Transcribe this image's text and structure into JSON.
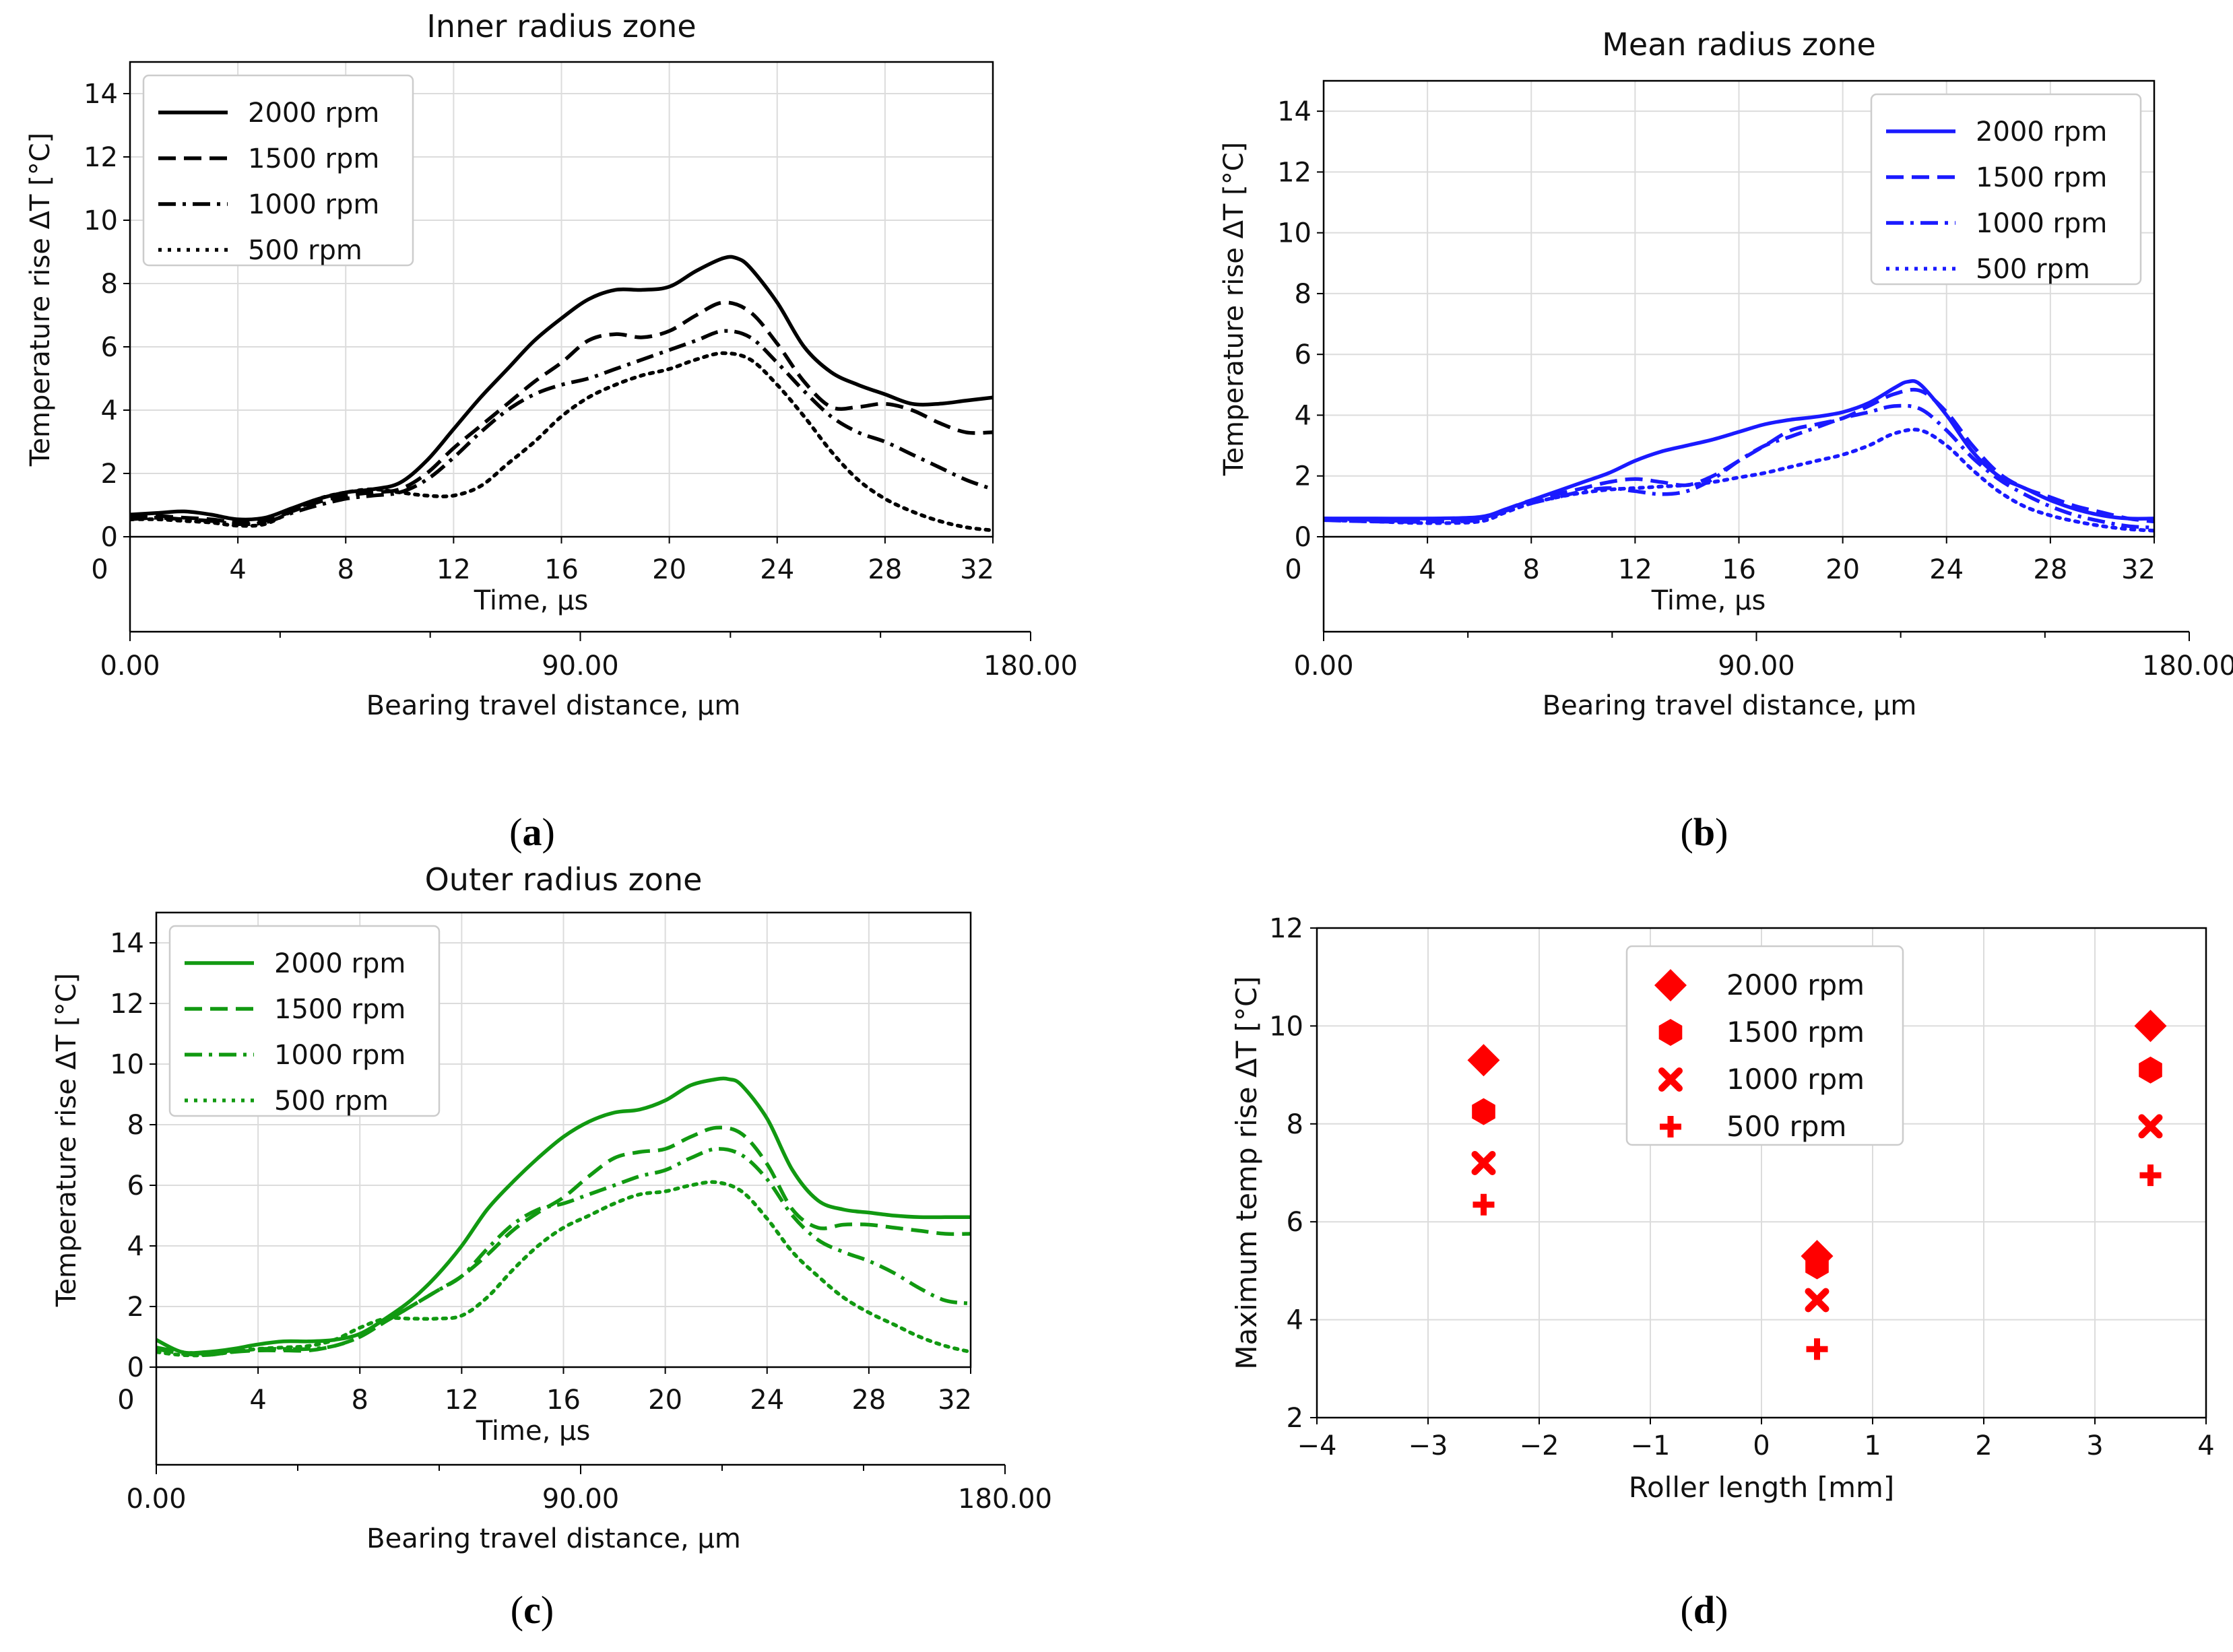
{
  "figure": {
    "panel_labels": [
      {
        "open": "(",
        "letter": "a",
        "close": ")"
      },
      {
        "open": "(",
        "letter": "b",
        "close": ")"
      },
      {
        "open": "(",
        "letter": "c",
        "close": ")"
      },
      {
        "open": "(",
        "letter": "d",
        "close": ")"
      }
    ]
  },
  "chart_data": [
    {
      "type": "line",
      "title": "Inner radius zone",
      "xlabel": "Time, µs",
      "ylabel": "Temperature rise ΔT [°C]",
      "xlabel_secondary": "Bearing travel distance, µm",
      "xlim": [
        0,
        32
      ],
      "ylim": [
        0,
        15
      ],
      "x_ticks": [
        0,
        4,
        8,
        12,
        16,
        20,
        24,
        28,
        32
      ],
      "y_ticks": [
        0,
        2,
        4,
        6,
        8,
        10,
        12,
        14
      ],
      "secondary_ticks": [
        "0.00",
        "90.00",
        "180.00"
      ],
      "secondary_range": [
        0,
        180
      ],
      "grid": true,
      "legend": "top-left",
      "color": "#000000",
      "series": [
        {
          "name": "2000 rpm",
          "style": "solid",
          "x": [
            0,
            1,
            2,
            3,
            4,
            5,
            6,
            7,
            8,
            9,
            10,
            11,
            12,
            13,
            14,
            15,
            16,
            17,
            18,
            19,
            20,
            21,
            22,
            22.5,
            23,
            24,
            25,
            26,
            27,
            28,
            29,
            30,
            31,
            32
          ],
          "y": [
            0.7,
            0.75,
            0.8,
            0.7,
            0.55,
            0.6,
            0.9,
            1.2,
            1.4,
            1.5,
            1.7,
            2.4,
            3.4,
            4.4,
            5.3,
            6.2,
            6.9,
            7.5,
            7.8,
            7.8,
            7.9,
            8.4,
            8.8,
            8.8,
            8.5,
            7.4,
            6.0,
            5.2,
            4.8,
            4.5,
            4.2,
            4.2,
            4.3,
            4.4
          ]
        },
        {
          "name": "1500 rpm",
          "style": "dashed",
          "x": [
            0,
            1,
            2,
            3,
            4,
            5,
            6,
            7,
            8,
            9,
            10,
            11,
            12,
            13,
            14,
            15,
            16,
            17,
            18,
            19,
            20,
            21,
            22,
            23,
            24,
            25,
            26,
            27,
            28,
            29,
            30,
            31,
            32
          ],
          "y": [
            0.6,
            0.65,
            0.6,
            0.55,
            0.45,
            0.5,
            0.8,
            1.1,
            1.3,
            1.4,
            1.5,
            2.0,
            2.8,
            3.5,
            4.2,
            4.9,
            5.5,
            6.2,
            6.4,
            6.3,
            6.5,
            7.0,
            7.4,
            7.1,
            6.1,
            4.9,
            4.1,
            4.1,
            4.2,
            4.0,
            3.6,
            3.3,
            3.3
          ]
        },
        {
          "name": "1000 rpm",
          "style": "dashdot",
          "x": [
            0,
            1,
            2,
            3,
            4,
            5,
            6,
            7,
            8,
            9,
            10,
            11,
            12,
            13,
            14,
            15,
            16,
            17,
            18,
            19,
            20,
            21,
            22,
            23,
            24,
            25,
            26,
            27,
            28,
            29,
            30,
            31,
            32
          ],
          "y": [
            0.55,
            0.6,
            0.55,
            0.5,
            0.4,
            0.45,
            0.75,
            1.0,
            1.2,
            1.3,
            1.4,
            1.8,
            2.5,
            3.3,
            4.0,
            4.5,
            4.8,
            5.0,
            5.3,
            5.6,
            5.9,
            6.2,
            6.5,
            6.3,
            5.5,
            4.6,
            3.8,
            3.3,
            3.0,
            2.6,
            2.2,
            1.8,
            1.5
          ]
        },
        {
          "name": "500 rpm",
          "style": "dotted",
          "x": [
            0,
            1,
            2,
            3,
            4,
            5,
            6,
            7,
            8,
            9,
            10,
            11,
            12,
            13,
            14,
            15,
            16,
            17,
            18,
            19,
            20,
            21,
            22,
            23,
            24,
            25,
            26,
            27,
            28,
            29,
            30,
            31,
            32
          ],
          "y": [
            0.55,
            0.55,
            0.5,
            0.45,
            0.35,
            0.4,
            0.8,
            1.2,
            1.4,
            1.5,
            1.4,
            1.3,
            1.3,
            1.6,
            2.3,
            3.0,
            3.8,
            4.4,
            4.8,
            5.1,
            5.3,
            5.6,
            5.8,
            5.6,
            4.8,
            3.8,
            2.7,
            1.8,
            1.2,
            0.8,
            0.5,
            0.3,
            0.2
          ]
        }
      ]
    },
    {
      "type": "line",
      "title": "Mean radius zone",
      "xlabel": "Time, µs",
      "ylabel": "Temperature rise ΔT [°C]",
      "xlabel_secondary": "Bearing travel distance, µm",
      "xlim": [
        0,
        32
      ],
      "ylim": [
        0,
        15
      ],
      "x_ticks": [
        0,
        4,
        8,
        12,
        16,
        20,
        24,
        28,
        32
      ],
      "y_ticks": [
        0,
        2,
        4,
        6,
        8,
        10,
        12,
        14
      ],
      "secondary_ticks": [
        "0.00",
        "90.00",
        "180.00"
      ],
      "secondary_range": [
        0,
        180
      ],
      "grid": true,
      "legend": "top-right",
      "color": "#1a1aff",
      "series": [
        {
          "name": "2000 rpm",
          "style": "solid",
          "x": [
            0,
            2,
            4,
            6,
            7,
            8,
            9,
            10,
            11,
            12,
            13,
            14,
            15,
            16,
            17,
            18,
            19,
            20,
            21,
            22,
            22.5,
            23,
            24,
            25,
            26,
            27,
            28,
            29,
            30,
            31,
            32
          ],
          "y": [
            0.6,
            0.6,
            0.6,
            0.65,
            0.9,
            1.2,
            1.5,
            1.8,
            2.1,
            2.5,
            2.8,
            3.0,
            3.2,
            3.45,
            3.7,
            3.85,
            3.95,
            4.1,
            4.4,
            4.9,
            5.1,
            5.0,
            4.0,
            2.8,
            2.0,
            1.6,
            1.2,
            0.9,
            0.7,
            0.6,
            0.6
          ]
        },
        {
          "name": "1500 rpm",
          "style": "dashed",
          "x": [
            0,
            2,
            4,
            6,
            7,
            8,
            9,
            10,
            11,
            12,
            13,
            14,
            15,
            16,
            17,
            18,
            19,
            20,
            21,
            22,
            23,
            24,
            25,
            26,
            27,
            28,
            29,
            30,
            31,
            32
          ],
          "y": [
            0.55,
            0.5,
            0.5,
            0.6,
            0.9,
            1.2,
            1.4,
            1.6,
            1.8,
            1.9,
            1.8,
            1.7,
            2.0,
            2.5,
            3.0,
            3.5,
            3.7,
            3.9,
            4.3,
            4.7,
            4.8,
            4.1,
            3.0,
            2.1,
            1.6,
            1.3,
            1.0,
            0.8,
            0.6,
            0.5
          ]
        },
        {
          "name": "1000 rpm",
          "style": "dashdot",
          "x": [
            0,
            2,
            4,
            6,
            7,
            8,
            9,
            10,
            11,
            12,
            13,
            14,
            15,
            16,
            17,
            18,
            19,
            20,
            21,
            22,
            23,
            24,
            25,
            26,
            27,
            28,
            29,
            30,
            31,
            32
          ],
          "y": [
            0.6,
            0.55,
            0.5,
            0.55,
            0.85,
            1.1,
            1.3,
            1.5,
            1.6,
            1.5,
            1.4,
            1.5,
            1.9,
            2.5,
            3.0,
            3.3,
            3.6,
            3.9,
            4.1,
            4.3,
            4.2,
            3.5,
            2.6,
            1.9,
            1.4,
            1.0,
            0.7,
            0.5,
            0.35,
            0.3
          ]
        },
        {
          "name": "500 rpm",
          "style": "dotted",
          "x": [
            0,
            2,
            4,
            6,
            7,
            8,
            9,
            10,
            11,
            12,
            13,
            14,
            15,
            16,
            17,
            18,
            19,
            20,
            21,
            22,
            23,
            24,
            25,
            26,
            27,
            28,
            29,
            30,
            31,
            32
          ],
          "y": [
            0.55,
            0.5,
            0.45,
            0.5,
            0.8,
            1.1,
            1.3,
            1.45,
            1.55,
            1.6,
            1.65,
            1.7,
            1.8,
            1.95,
            2.1,
            2.3,
            2.5,
            2.7,
            3.0,
            3.4,
            3.5,
            3.0,
            2.2,
            1.5,
            1.0,
            0.7,
            0.5,
            0.35,
            0.25,
            0.2
          ]
        }
      ]
    },
    {
      "type": "line",
      "title": "Outer radius zone",
      "xlabel": "Time, µs",
      "ylabel": "Temperature rise ΔT [°C]",
      "xlabel_secondary": "Bearing travel distance, µm",
      "xlim": [
        0,
        32
      ],
      "ylim": [
        0,
        15
      ],
      "x_ticks": [
        0,
        4,
        8,
        12,
        16,
        20,
        24,
        28,
        32
      ],
      "y_ticks": [
        0,
        2,
        4,
        6,
        8,
        10,
        12,
        14
      ],
      "secondary_ticks": [
        "0.00",
        "90.00",
        "180.00"
      ],
      "secondary_range": [
        0,
        180
      ],
      "grid": true,
      "legend": "top-left",
      "color": "#119911",
      "series": [
        {
          "name": "2000 rpm",
          "style": "solid",
          "x": [
            0,
            1,
            2,
            3,
            4,
            5,
            6,
            7,
            8,
            9,
            10,
            11,
            12,
            13,
            14,
            15,
            16,
            17,
            18,
            19,
            20,
            21,
            22,
            22.5,
            23,
            24,
            25,
            26,
            27,
            28,
            29,
            30,
            31,
            32
          ],
          "y": [
            0.9,
            0.5,
            0.5,
            0.6,
            0.75,
            0.85,
            0.85,
            0.9,
            1.1,
            1.6,
            2.2,
            3.0,
            4.0,
            5.2,
            6.1,
            6.9,
            7.6,
            8.1,
            8.4,
            8.5,
            8.8,
            9.3,
            9.5,
            9.5,
            9.3,
            8.2,
            6.5,
            5.5,
            5.2,
            5.1,
            5.0,
            4.95,
            4.95,
            4.95
          ]
        },
        {
          "name": "1500 rpm",
          "style": "dashed",
          "x": [
            0,
            1,
            2,
            3,
            4,
            5,
            6,
            7,
            8,
            9,
            10,
            11,
            12,
            13,
            14,
            15,
            16,
            17,
            18,
            19,
            20,
            21,
            22,
            23,
            24,
            25,
            26,
            27,
            28,
            29,
            30,
            31,
            32
          ],
          "y": [
            0.6,
            0.45,
            0.4,
            0.5,
            0.55,
            0.55,
            0.55,
            0.7,
            1.0,
            1.5,
            2.0,
            2.5,
            3.0,
            3.7,
            4.5,
            5.1,
            5.6,
            6.3,
            6.9,
            7.1,
            7.2,
            7.6,
            7.9,
            7.7,
            6.7,
            5.2,
            4.6,
            4.7,
            4.7,
            4.6,
            4.5,
            4.4,
            4.4
          ]
        },
        {
          "name": "1000 rpm",
          "style": "dashdot",
          "x": [
            0,
            1,
            2,
            3,
            4,
            5,
            6,
            7,
            8,
            9,
            10,
            11,
            12,
            13,
            14,
            15,
            16,
            17,
            18,
            19,
            20,
            21,
            22,
            23,
            24,
            25,
            26,
            27,
            28,
            29,
            30,
            31,
            32
          ],
          "y": [
            0.65,
            0.5,
            0.45,
            0.55,
            0.6,
            0.6,
            0.6,
            0.7,
            1.0,
            1.5,
            2.0,
            2.5,
            3.0,
            3.9,
            4.7,
            5.2,
            5.4,
            5.7,
            6.0,
            6.3,
            6.5,
            6.9,
            7.2,
            7.0,
            6.2,
            5.0,
            4.2,
            3.8,
            3.5,
            3.1,
            2.6,
            2.2,
            2.1
          ]
        },
        {
          "name": "500 rpm",
          "style": "dotted",
          "x": [
            0,
            1,
            2,
            3,
            4,
            5,
            6,
            7,
            8,
            9,
            10,
            11,
            12,
            13,
            14,
            15,
            16,
            17,
            18,
            19,
            20,
            21,
            22,
            23,
            24,
            25,
            26,
            27,
            28,
            29,
            30,
            31,
            32
          ],
          "y": [
            0.5,
            0.4,
            0.4,
            0.5,
            0.6,
            0.65,
            0.7,
            0.9,
            1.3,
            1.6,
            1.6,
            1.6,
            1.7,
            2.3,
            3.2,
            4.0,
            4.6,
            5.0,
            5.4,
            5.7,
            5.8,
            6.0,
            6.1,
            5.8,
            4.9,
            3.8,
            3.0,
            2.3,
            1.8,
            1.4,
            1.0,
            0.7,
            0.5
          ]
        }
      ]
    },
    {
      "type": "scatter",
      "title": "",
      "xlabel": "Roller length [mm]",
      "ylabel": "Maximum temp rise ΔT [°C]",
      "xlim": [
        -4,
        4
      ],
      "ylim": [
        2,
        12
      ],
      "x_ticks": [
        -4,
        -3,
        -2,
        -1,
        0,
        1,
        2,
        3,
        4
      ],
      "x_tick_labels": [
        "−4",
        "−3",
        "−2",
        "−1",
        "0",
        "1",
        "2",
        "3",
        "4"
      ],
      "y_ticks": [
        2,
        4,
        6,
        8,
        10,
        12
      ],
      "grid": true,
      "legend": "top-center",
      "color": "#ff0000",
      "series": [
        {
          "name": "2000 rpm",
          "marker": "diamond",
          "x": [
            -2.5,
            0.5,
            3.5
          ],
          "y": [
            9.3,
            5.3,
            10.0
          ]
        },
        {
          "name": "1500 rpm",
          "marker": "hexagon",
          "x": [
            -2.5,
            0.5,
            3.5
          ],
          "y": [
            8.25,
            5.1,
            9.1
          ]
        },
        {
          "name": "1000 rpm",
          "marker": "x",
          "x": [
            -2.5,
            0.5,
            3.5
          ],
          "y": [
            7.2,
            4.4,
            7.95
          ]
        },
        {
          "name": "500 rpm",
          "marker": "plus",
          "x": [
            -2.5,
            0.5,
            3.5
          ],
          "y": [
            6.35,
            3.4,
            6.95
          ]
        }
      ]
    }
  ]
}
